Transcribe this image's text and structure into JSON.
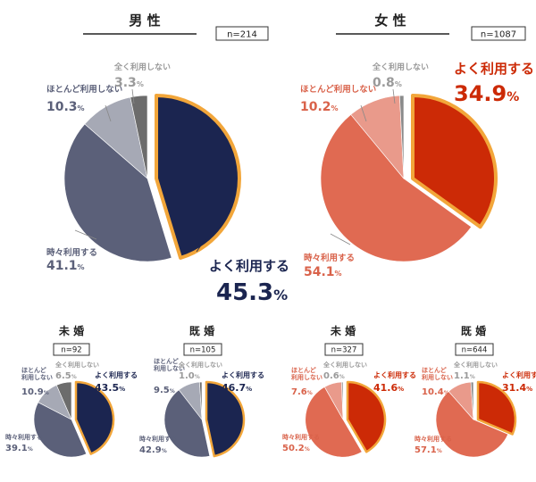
{
  "colors": {
    "male": [
      "#1b2550",
      "#5b6079",
      "#a6a9b5",
      "#6c6c6c"
    ],
    "female": [
      "#cc2a06",
      "#e06a52",
      "#e99a8b",
      "#8a8a8a"
    ],
    "highlight": "#f2a63a",
    "male_label": [
      "#1b2550",
      "#5b6079",
      "#5b6079",
      "#9a9a9a"
    ],
    "female_label": [
      "#cc2a06",
      "#d9624a",
      "#d9624a",
      "#9a9a9a"
    ]
  },
  "chart_data": [
    {
      "type": "pie",
      "title": "男 性",
      "n": "n=214",
      "categories": [
        "よく利用する",
        "時々利用する",
        "ほとんど利用しない",
        "全く利用しない"
      ],
      "values": [
        45.3,
        41.1,
        10.3,
        3.3
      ],
      "labels": [
        "45.3",
        "41.1",
        "10.3",
        "3.3"
      ],
      "unit": "%"
    },
    {
      "type": "pie",
      "title": "女 性",
      "n": "n=1087",
      "categories": [
        "よく利用する",
        "時々利用する",
        "ほとんど利用しない",
        "全く利用しない"
      ],
      "values": [
        34.9,
        54.1,
        10.2,
        0.8
      ],
      "labels": [
        "34.9",
        "54.1",
        "10.2",
        "0.8"
      ],
      "unit": "%"
    },
    {
      "type": "pie",
      "title": "未 婚",
      "n": "n=92",
      "categories": [
        "よく利用する",
        "時々利用する",
        "ほとんど\n利用しない",
        "全く利用しない"
      ],
      "values": [
        43.5,
        39.1,
        10.9,
        6.5
      ],
      "labels": [
        "43.5",
        "39.1",
        "10.9",
        "6.5"
      ],
      "unit": "%"
    },
    {
      "type": "pie",
      "title": "既 婚",
      "n": "n=105",
      "categories": [
        "よく利用する",
        "時々利用する",
        "ほとんど\n利用しない",
        "全く利用しない"
      ],
      "values": [
        46.7,
        42.9,
        9.5,
        1.0
      ],
      "labels": [
        "46.7",
        "42.9",
        "9.5",
        "1.0"
      ],
      "unit": "%"
    },
    {
      "type": "pie",
      "title": "未 婚",
      "n": "n=327",
      "categories": [
        "よく利用する",
        "時々利用する",
        "ほとんど\n利用しない",
        "全く利用しない"
      ],
      "values": [
        41.6,
        50.2,
        7.6,
        0.6
      ],
      "labels": [
        "41.6",
        "50.2",
        "7.6",
        "0.6"
      ],
      "unit": "%"
    },
    {
      "type": "pie",
      "title": "既 婚",
      "n": "n=644",
      "categories": [
        "よく利用する",
        "時々利用する",
        "ほとんど\n利用しない",
        "全く利用しない"
      ],
      "values": [
        31.4,
        57.1,
        10.4,
        1.1
      ],
      "labels": [
        "31.4",
        "57.1",
        "10.4",
        "1.1"
      ],
      "unit": "%"
    }
  ]
}
